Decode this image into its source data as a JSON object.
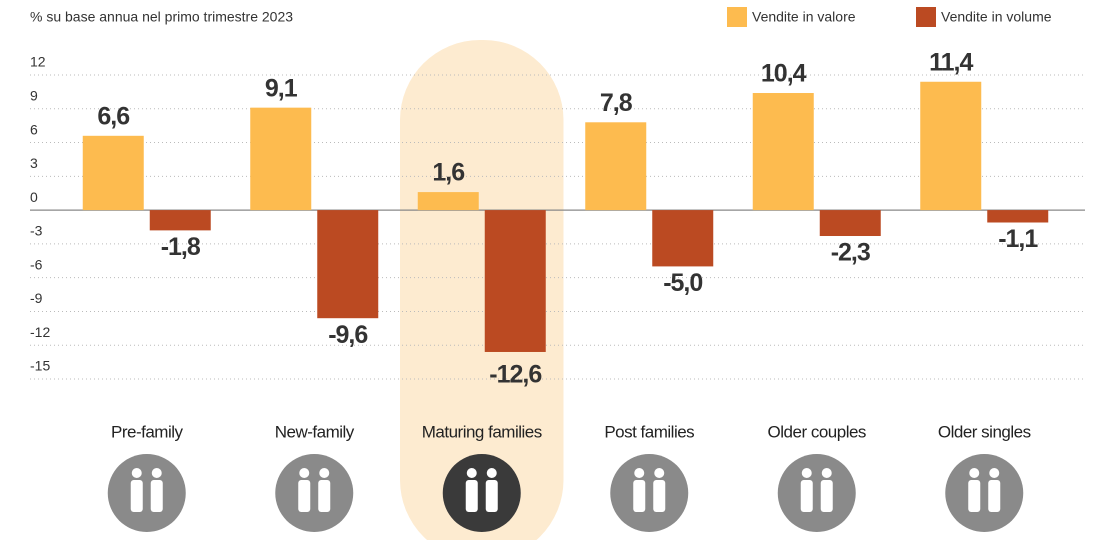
{
  "chart_data": {
    "type": "bar",
    "subtitle": "% su base annua nel primo trimestre 2023",
    "categories": [
      "Pre-family",
      "New-family",
      "Maturing families",
      "Post families",
      "Older couples",
      "Older singles"
    ],
    "series": [
      {
        "name": "Vendite in valore",
        "color": "#fdbb4f",
        "values": [
          6.6,
          9.1,
          1.6,
          7.8,
          10.4,
          11.4
        ],
        "value_labels": [
          "6,6",
          "9,1",
          "1,6",
          "7,8",
          "10,4",
          "11,4"
        ]
      },
      {
        "name": "Vendite in volume",
        "color": "#bb4a22",
        "values": [
          -1.8,
          -9.6,
          -12.6,
          -5.0,
          -2.3,
          -1.1
        ],
        "value_labels": [
          "-1,8",
          "-9,6",
          "-12,6",
          "-5,0",
          "-2,3",
          "-1,1"
        ]
      }
    ],
    "ylim": [
      -15,
      12
    ],
    "yticks": [
      12,
      9,
      6,
      3,
      0,
      -3,
      -6,
      -9,
      -12,
      -15
    ],
    "grid": true,
    "legend": "top-right",
    "highlight_index": 2
  }
}
